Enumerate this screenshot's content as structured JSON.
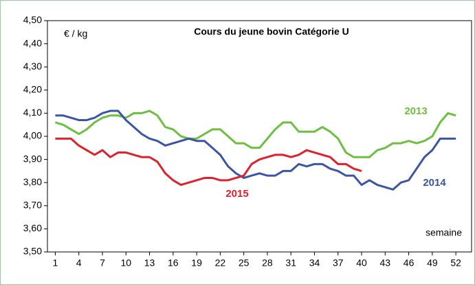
{
  "chart_data": {
    "type": "line",
    "title": "Cours du jeune bovin Catégorie U",
    "y_label": "€ / kg",
    "x_label": "semaine",
    "x": [
      1,
      2,
      3,
      4,
      5,
      6,
      7,
      8,
      9,
      10,
      11,
      12,
      13,
      14,
      15,
      16,
      17,
      18,
      19,
      20,
      21,
      22,
      23,
      24,
      25,
      26,
      27,
      28,
      29,
      30,
      31,
      32,
      33,
      34,
      35,
      36,
      37,
      38,
      39,
      40,
      41,
      42,
      43,
      44,
      45,
      46,
      47,
      48,
      49,
      50,
      51,
      52
    ],
    "xlim": [
      0,
      54
    ],
    "xticks": [
      1,
      4,
      7,
      10,
      13,
      16,
      19,
      22,
      25,
      28,
      31,
      34,
      37,
      40,
      43,
      46,
      49,
      52
    ],
    "ylim": [
      3.5,
      4.5
    ],
    "yticks": [
      {
        "value": 3.5,
        "label": "3,50"
      },
      {
        "value": 3.6,
        "label": "3,60"
      },
      {
        "value": 3.7,
        "label": "3,70"
      },
      {
        "value": 3.8,
        "label": "3,80"
      },
      {
        "value": 3.9,
        "label": "3,90"
      },
      {
        "value": 4.0,
        "label": "4,00"
      },
      {
        "value": 4.1,
        "label": "4,10"
      },
      {
        "value": 4.2,
        "label": "4,20"
      },
      {
        "value": 4.3,
        "label": "4,30"
      },
      {
        "value": 4.4,
        "label": "4,40"
      },
      {
        "value": 4.5,
        "label": "4,50"
      }
    ],
    "grid": false,
    "series": [
      {
        "name": "2013",
        "color": "#6cbf3f",
        "values": [
          4.06,
          4.05,
          4.03,
          4.01,
          4.03,
          4.06,
          4.08,
          4.09,
          4.09,
          4.08,
          4.1,
          4.1,
          4.11,
          4.09,
          4.04,
          4.03,
          4.0,
          3.99,
          3.99,
          4.01,
          4.03,
          4.03,
          4.0,
          3.97,
          3.97,
          3.95,
          3.95,
          3.99,
          4.03,
          4.06,
          4.06,
          4.02,
          4.02,
          4.02,
          4.04,
          4.02,
          3.99,
          3.93,
          3.91,
          3.91,
          3.91,
          3.94,
          3.95,
          3.97,
          3.97,
          3.98,
          3.97,
          3.98,
          4.0,
          4.06,
          4.1,
          4.09
        ]
      },
      {
        "name": "2014",
        "color": "#3a55a4",
        "values": [
          4.09,
          4.09,
          4.08,
          4.07,
          4.07,
          4.08,
          4.1,
          4.11,
          4.11,
          4.07,
          4.04,
          4.01,
          3.99,
          3.98,
          3.96,
          3.97,
          3.98,
          3.99,
          3.98,
          3.98,
          3.95,
          3.92,
          3.87,
          3.84,
          3.82,
          3.83,
          3.84,
          3.83,
          3.83,
          3.85,
          3.85,
          3.88,
          3.87,
          3.88,
          3.88,
          3.86,
          3.85,
          3.83,
          3.83,
          3.79,
          3.81,
          3.79,
          3.78,
          3.77,
          3.8,
          3.81,
          3.86,
          3.91,
          3.94,
          3.99,
          3.99,
          3.99
        ]
      },
      {
        "name": "2015",
        "color": "#e0202a",
        "values": [
          3.99,
          3.99,
          3.99,
          3.96,
          3.94,
          3.92,
          3.94,
          3.91,
          3.93,
          3.93,
          3.92,
          3.91,
          3.91,
          3.89,
          3.84,
          3.81,
          3.79,
          3.8,
          3.81,
          3.82,
          3.82,
          3.81,
          3.81,
          3.82,
          3.83,
          3.88,
          3.9,
          3.91,
          3.92,
          3.92,
          3.91,
          3.92,
          3.94,
          3.93,
          3.92,
          3.91,
          3.88,
          3.88,
          3.86,
          3.85,
          null,
          null,
          null,
          null,
          null,
          null,
          null,
          null,
          null,
          null,
          null,
          null
        ]
      }
    ]
  }
}
